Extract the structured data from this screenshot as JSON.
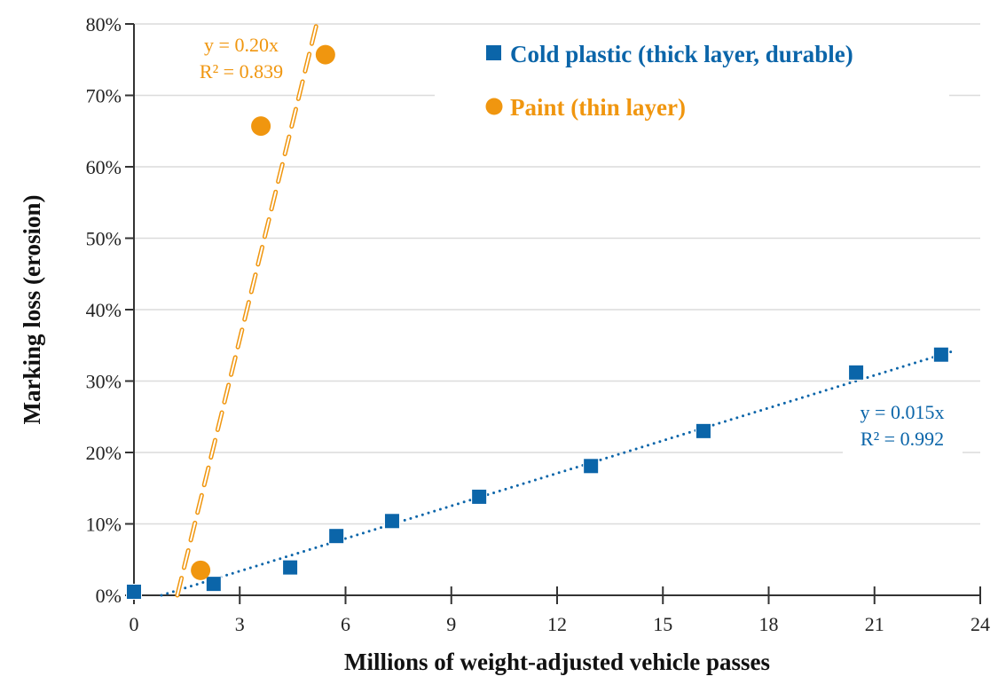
{
  "chart_data": {
    "type": "scatter",
    "title": "",
    "xlabel": "Millions of weight-adjusted vehicle passes",
    "ylabel": "Marking loss (erosion)",
    "xlim": [
      0,
      24
    ],
    "ylim": [
      0,
      80
    ],
    "xticks": [
      0,
      3,
      6,
      9,
      12,
      15,
      18,
      21,
      24
    ],
    "yticks": [
      0,
      10,
      20,
      30,
      40,
      50,
      60,
      70,
      80
    ],
    "ytick_labels": [
      "0%",
      "10%",
      "20%",
      "30%",
      "40%",
      "50%",
      "60%",
      "70%",
      "80%"
    ],
    "grid": "horizontal",
    "legend_position": "top-right",
    "series": [
      {
        "name": "Cold plastic (thick layer, durable)",
        "marker": "square",
        "color": "#0b65a9",
        "x": [
          0,
          2.26,
          4.43,
          5.74,
          7.32,
          9.79,
          12.96,
          16.15,
          20.48,
          22.89
        ],
        "y": [
          0.5,
          1.6,
          3.9,
          8.3,
          10.4,
          13.8,
          18.1,
          23.0,
          31.2,
          33.7
        ],
        "trendline": {
          "style": "dotted",
          "x": [
            0.78,
            23.3
          ],
          "y": [
            0,
            34.3
          ],
          "equation": "y = 0.015x",
          "r2": "R² = 0.992"
        }
      },
      {
        "name": "Paint (thin layer)",
        "marker": "circle",
        "color": "#f0960f",
        "x": [
          1.89,
          3.6,
          5.43
        ],
        "y": [
          3.5,
          65.7,
          75.7
        ],
        "trendline": {
          "style": "dashed",
          "x": [
            1.23,
            5.18
          ],
          "y": [
            0,
            80
          ],
          "equation": "y = 0.20x",
          "r2": "R² = 0.839"
        }
      }
    ]
  }
}
